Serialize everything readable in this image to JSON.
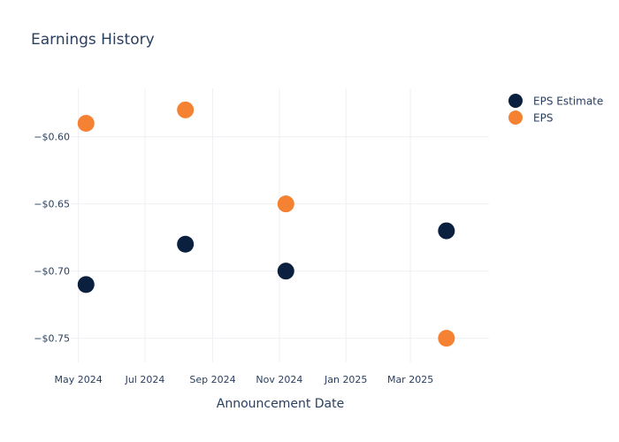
{
  "chart_data": {
    "type": "scatter",
    "title": "Earnings History",
    "xlabel": "Announcement Date",
    "ylabel": "",
    "x_ticks": [
      "May 2024",
      "Jul 2024",
      "Sep 2024",
      "Nov 2024",
      "Jan 2025",
      "Mar 2025"
    ],
    "x_tick_dates": [
      "2024-05-01",
      "2024-07-01",
      "2024-09-01",
      "2024-11-01",
      "2025-01-01",
      "2025-03-01"
    ],
    "xlim": [
      "2024-04-24",
      "2025-05-12"
    ],
    "y_ticks": [
      "−$0.60",
      "−$0.65",
      "−$0.70",
      "−$0.75"
    ],
    "y_tick_values": [
      -0.6,
      -0.65,
      -0.7,
      -0.75
    ],
    "ylim": [
      -0.768,
      -0.564
    ],
    "grid": true,
    "legend_position": "top-right",
    "series": [
      {
        "name": "EPS Estimate",
        "color": "#0b1f3f",
        "points": [
          {
            "x": "2024-05-08",
            "y": -0.71
          },
          {
            "x": "2024-08-07",
            "y": -0.68
          },
          {
            "x": "2024-11-07",
            "y": -0.7
          },
          {
            "x": "2025-04-03",
            "y": -0.67
          }
        ]
      },
      {
        "name": "EPS",
        "color": "#f58232",
        "points": [
          {
            "x": "2024-05-08",
            "y": -0.59
          },
          {
            "x": "2024-08-07",
            "y": -0.58
          },
          {
            "x": "2024-11-07",
            "y": -0.65
          },
          {
            "x": "2025-04-03",
            "y": -0.75
          }
        ]
      }
    ]
  }
}
